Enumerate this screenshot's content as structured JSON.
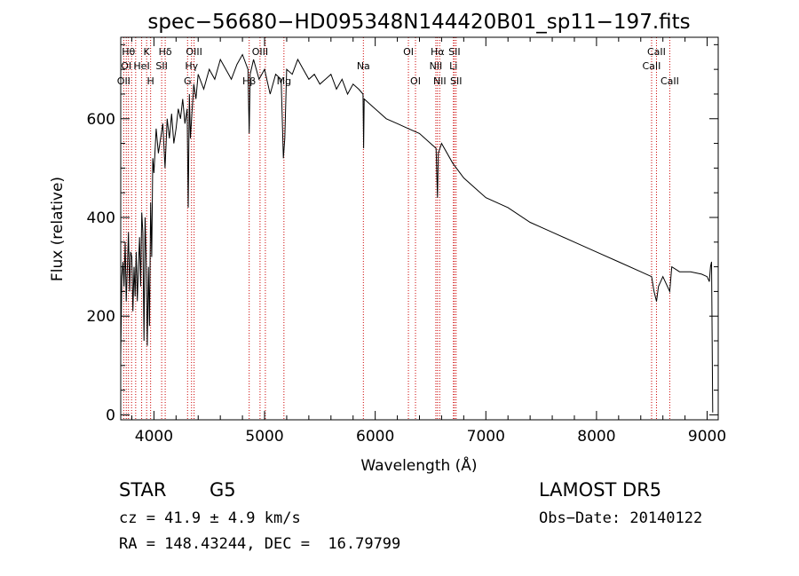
{
  "chart_data": {
    "type": "line",
    "title": "spec−56680−HD095348N144420B01_sp11−197.fits",
    "xlabel": "Wavelength (Å)",
    "ylabel": "Flux (relative)",
    "xlim": [
      3700,
      9100
    ],
    "ylim": [
      -10,
      765
    ],
    "x_ticks": [
      4000,
      5000,
      6000,
      7000,
      8000,
      9000
    ],
    "y_ticks": [
      0,
      200,
      400,
      600
    ],
    "grid": false,
    "line_color": "#000000",
    "marker_color": "#cc0000",
    "series": [
      {
        "x": [
          3700,
          3710,
          3720,
          3730,
          3740,
          3750,
          3760,
          3770,
          3780,
          3790,
          3800,
          3810,
          3820,
          3830,
          3840,
          3850,
          3860,
          3870,
          3880,
          3890,
          3900,
          3910,
          3920,
          3930,
          3940,
          3950,
          3960,
          3970,
          3980,
          3990,
          4000,
          4020,
          4040,
          4060,
          4080,
          4100,
          4120,
          4140,
          4160,
          4180,
          4200,
          4220,
          4240,
          4260,
          4280,
          4300,
          4310,
          4320,
          4330,
          4340,
          4360,
          4380,
          4400,
          4450,
          4500,
          4550,
          4600,
          4650,
          4700,
          4750,
          4800,
          4850,
          4861,
          4870,
          4900,
          4950,
          5000,
          5050,
          5100,
          5150,
          5170,
          5183,
          5200,
          5250,
          5300,
          5350,
          5400,
          5450,
          5500,
          5550,
          5600,
          5650,
          5700,
          5750,
          5800,
          5850,
          5890,
          5895,
          5900,
          5950,
          6000,
          6100,
          6200,
          6300,
          6400,
          6500,
          6550,
          6563,
          6570,
          6600,
          6700,
          6800,
          6900,
          7000,
          7200,
          7400,
          7600,
          7800,
          8000,
          8200,
          8400,
          8498,
          8520,
          8542,
          8560,
          8600,
          8662,
          8680,
          8750,
          8850,
          8950,
          9000,
          9020,
          9030,
          9040,
          9050
        ],
        "y": [
          120,
          280,
          310,
          260,
          350,
          230,
          300,
          370,
          250,
          330,
          320,
          210,
          300,
          240,
          330,
          230,
          300,
          360,
          260,
          410,
          370,
          150,
          400,
          310,
          140,
          300,
          180,
          430,
          320,
          520,
          490,
          580,
          530,
          560,
          590,
          500,
          600,
          560,
          610,
          550,
          580,
          620,
          600,
          640,
          590,
          620,
          420,
          650,
          560,
          600,
          670,
          640,
          690,
          660,
          700,
          680,
          720,
          700,
          680,
          710,
          730,
          700,
          570,
          690,
          720,
          680,
          700,
          650,
          690,
          680,
          520,
          560,
          700,
          690,
          720,
          700,
          680,
          690,
          670,
          680,
          690,
          660,
          680,
          650,
          670,
          660,
          650,
          540,
          640,
          630,
          620,
          600,
          590,
          580,
          570,
          550,
          540,
          440,
          530,
          550,
          510,
          480,
          460,
          440,
          420,
          390,
          370,
          350,
          330,
          310,
          290,
          280,
          250,
          230,
          260,
          280,
          250,
          300,
          290,
          290,
          285,
          280,
          270,
          300,
          310,
          5
        ]
      }
    ],
    "line_markers": [
      {
        "wavelength": 3727,
        "label": "OII",
        "row": 3
      },
      {
        "wavelength": 3750,
        "label": "OI",
        "row": 2
      },
      {
        "wavelength": 3770,
        "label": "Hθ",
        "row": 1
      },
      {
        "wavelength": 3798,
        "label": "",
        "row": 0
      },
      {
        "wavelength": 3835,
        "label": "",
        "row": 0
      },
      {
        "wavelength": 3889,
        "label": "HeI",
        "row": 2
      },
      {
        "wavelength": 3934,
        "label": "K",
        "row": 1
      },
      {
        "wavelength": 3970,
        "label": "H",
        "row": 3
      },
      {
        "wavelength": 4070,
        "label": "SII",
        "row": 2
      },
      {
        "wavelength": 4102,
        "label": "Hδ",
        "row": 1
      },
      {
        "wavelength": 4304,
        "label": "G",
        "row": 3
      },
      {
        "wavelength": 4340,
        "label": "Hγ",
        "row": 2
      },
      {
        "wavelength": 4363,
        "label": "OIII",
        "row": 1
      },
      {
        "wavelength": 4861,
        "label": "Hβ",
        "row": 3
      },
      {
        "wavelength": 4959,
        "label": "OIII",
        "row": 1
      },
      {
        "wavelength": 5007,
        "label": "",
        "row": 0
      },
      {
        "wavelength": 5175,
        "label": "Mg",
        "row": 3
      },
      {
        "wavelength": 5893,
        "label": "Na",
        "row": 2
      },
      {
        "wavelength": 6300,
        "label": "OI",
        "row": 1
      },
      {
        "wavelength": 6364,
        "label": "OI",
        "row": 3
      },
      {
        "wavelength": 6548,
        "label": "NII",
        "row": 2
      },
      {
        "wavelength": 6563,
        "label": "Hα",
        "row": 1
      },
      {
        "wavelength": 6583,
        "label": "NII",
        "row": 3
      },
      {
        "wavelength": 6707,
        "label": "Li",
        "row": 2
      },
      {
        "wavelength": 6716,
        "label": "SII",
        "row": 1
      },
      {
        "wavelength": 6731,
        "label": "SII",
        "row": 3
      },
      {
        "wavelength": 8498,
        "label": "CaII",
        "row": 2
      },
      {
        "wavelength": 8542,
        "label": "CaII",
        "row": 1
      },
      {
        "wavelength": 8662,
        "label": "CaII",
        "row": 3
      }
    ]
  },
  "info": {
    "class_label": "STAR",
    "subclass": "G5",
    "survey": "LAMOST DR5",
    "redshift_line": "cz = 41.9 ± 4.9 km/s",
    "obs_date": "Obs−Date: 20140122",
    "coords_line": "RA = 148.43244, DEC =  16.79799"
  }
}
